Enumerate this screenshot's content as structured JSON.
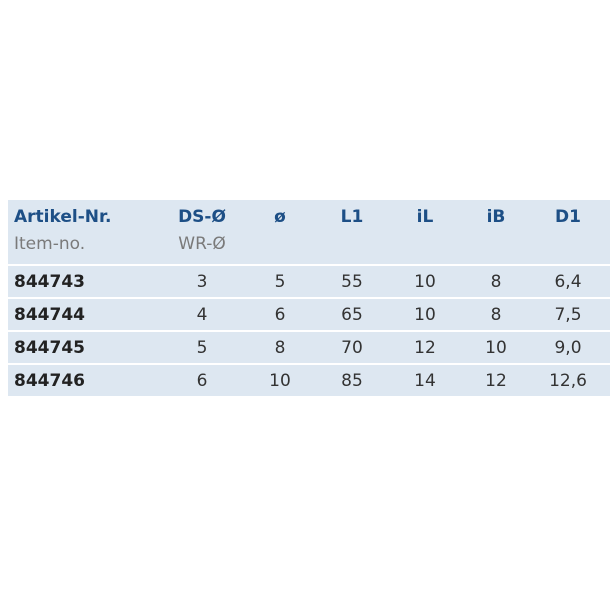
{
  "table": {
    "header": [
      {
        "main": "Artikel-Nr.",
        "sub": "Item-no."
      },
      {
        "main": "DS-Ø",
        "sub": "WR-Ø"
      },
      {
        "main": "ø"
      },
      {
        "main": "L1"
      },
      {
        "main": "iL"
      },
      {
        "main": "iB"
      },
      {
        "main": "D1"
      }
    ],
    "rows": [
      [
        "844743",
        "3",
        "5",
        "55",
        "10",
        "8",
        "6,4"
      ],
      [
        "844744",
        "4",
        "6",
        "65",
        "10",
        "8",
        "7,5"
      ],
      [
        "844745",
        "5",
        "8",
        "70",
        "12",
        "10",
        "9,0"
      ],
      [
        "844746",
        "6",
        "10",
        "85",
        "14",
        "12",
        "12,6"
      ]
    ]
  }
}
